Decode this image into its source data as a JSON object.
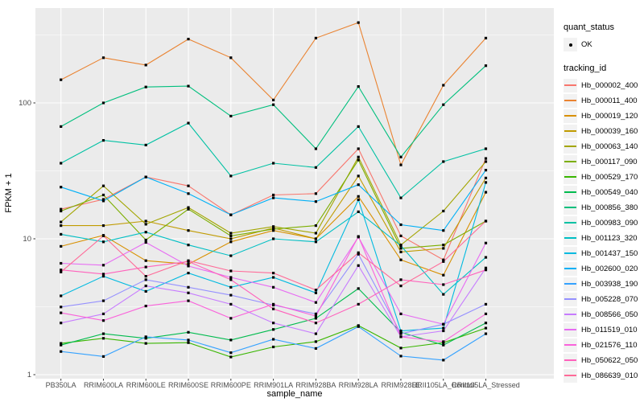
{
  "legend": {
    "quant_status_title": "quant_status",
    "quant_status_ok": "OK",
    "tracking_id_title": "tracking_id"
  },
  "figure": {
    "panel_bg": "#EBEBEB",
    "grid_color": "#FFFFFF",
    "tick_label_color": "#4D4D4D",
    "point_color": "#000000",
    "key_bg": "#F2F2F2"
  },
  "chart_data": {
    "type": "line",
    "title": "",
    "xlabel": "sample_name",
    "ylabel": "FPKM + 1",
    "y_scale": "log10",
    "ylim": [
      1,
      400
    ],
    "y_major_ticks": [
      1,
      10,
      100
    ],
    "y_major_tick_labels": [
      "1",
      "10",
      "100"
    ],
    "y_minor_ticks": [
      3.162,
      31.62,
      316.2
    ],
    "grid": "on",
    "legend_position": "right",
    "quant_status": "OK",
    "x": [
      "PB350LA",
      "RRIM600LA",
      "RRIM600LE",
      "RRIM600SE",
      "RRIM600PE",
      "RRIM901LA",
      "RRIM928BA",
      "RRIM928LA",
      "RRIM928LE",
      "RRII105LA_Control",
      "RRII105LA_Stressed"
    ],
    "series": [
      {
        "name": "Hb_000002_400",
        "color": "#F8766D",
        "values": [
          16.5,
          19.5,
          28.5,
          24.5,
          15,
          21,
          21.5,
          46,
          10.5,
          7,
          39
        ]
      },
      {
        "name": "Hb_000011_400",
        "color": "#EA8331",
        "values": [
          148,
          215,
          190,
          295,
          215,
          105,
          300,
          390,
          35,
          135,
          300
        ]
      },
      {
        "name": "Hb_000019_120",
        "color": "#D89000",
        "values": [
          8.8,
          10.6,
          6.9,
          6.5,
          9.5,
          11.5,
          10,
          20.5,
          7,
          5.4,
          22
        ]
      },
      {
        "name": "Hb_000039_160",
        "color": "#C09B00",
        "values": [
          12.5,
          12.5,
          13.5,
          11.5,
          10,
          12,
          10,
          29,
          8,
          8.5,
          28
        ]
      },
      {
        "name": "Hb_000063_140",
        "color": "#A3A500",
        "values": [
          13.3,
          24.5,
          12.8,
          17,
          11,
          12.3,
          11,
          40,
          9,
          16,
          37
        ]
      },
      {
        "name": "Hb_000117_090",
        "color": "#7CAE00",
        "values": [
          16,
          21,
          9.8,
          16.5,
          10.5,
          11.8,
          12.5,
          38,
          8.5,
          9,
          13.5
        ]
      },
      {
        "name": "Hb_000529_170",
        "color": "#39B600",
        "values": [
          1.7,
          1.85,
          1.7,
          1.72,
          1.35,
          1.6,
          1.75,
          2.3,
          1.57,
          1.72,
          2.2
        ]
      },
      {
        "name": "Hb_000549_040",
        "color": "#00BB4E",
        "values": [
          1.65,
          2.0,
          1.85,
          2.05,
          1.8,
          2.15,
          2.6,
          4.3,
          2.05,
          1.65,
          2.4
        ]
      },
      {
        "name": "Hb_000856_380",
        "color": "#00BF7D",
        "values": [
          67,
          100,
          131,
          133,
          80,
          97,
          46,
          132,
          40,
          97,
          188
        ]
      },
      {
        "name": "Hb_000983_090",
        "color": "#00C1A3",
        "values": [
          36,
          53,
          49,
          71,
          29,
          36,
          33.5,
          67,
          20,
          37,
          46
        ]
      },
      {
        "name": "Hb_001123_320",
        "color": "#00BFC4",
        "values": [
          10.8,
          9.5,
          11.2,
          9.0,
          7.5,
          10,
          9.5,
          15.8,
          8.9,
          3.9,
          7.3
        ]
      },
      {
        "name": "Hb_001437_150",
        "color": "#00BAE0",
        "values": [
          3.8,
          5.3,
          4.1,
          5.6,
          4.4,
          5.2,
          4.0,
          19.4,
          2.1,
          2.2,
          26
        ]
      },
      {
        "name": "Hb_002600_020",
        "color": "#00B0F6",
        "values": [
          24,
          19,
          28.5,
          21.5,
          15,
          20,
          18.8,
          25,
          12.7,
          11.5,
          32
        ]
      },
      {
        "name": "Hb_003938_190",
        "color": "#35A2FF",
        "values": [
          1.48,
          1.36,
          1.9,
          1.8,
          1.45,
          1.82,
          1.56,
          2.26,
          1.37,
          1.28,
          2.0
        ]
      },
      {
        "name": "Hb_005228_070",
        "color": "#9590FF",
        "values": [
          3.15,
          3.5,
          5.0,
          4.4,
          3.85,
          3.25,
          2.8,
          7.7,
          2.0,
          2.35,
          3.3
        ]
      },
      {
        "name": "Hb_008566_050",
        "color": "#C77CFF",
        "values": [
          2.4,
          2.8,
          4.5,
          4.0,
          3.3,
          2.4,
          2.0,
          6.35,
          1.9,
          2.1,
          6.1
        ]
      },
      {
        "name": "Hb_011519_010",
        "color": "#E76BF3",
        "values": [
          6.6,
          6.4,
          9.4,
          6.3,
          5.2,
          4.4,
          3.4,
          10.3,
          2.8,
          2.35,
          9.3
        ]
      },
      {
        "name": "Hb_021576_110",
        "color": "#FA62DB",
        "values": [
          2.85,
          2.5,
          3.2,
          3.5,
          2.6,
          3.3,
          2.7,
          10.4,
          1.9,
          1.75,
          2.8
        ]
      },
      {
        "name": "Hb_050622_050",
        "color": "#FF62BC",
        "values": [
          5.9,
          5.5,
          6.2,
          6.8,
          5.0,
          3.05,
          2.4,
          3.3,
          5.0,
          4.6,
          5.9
        ]
      },
      {
        "name": "Hb_086639_010",
        "color": "#FF6A98",
        "values": [
          5.7,
          10.5,
          5.3,
          6.9,
          5.8,
          5.6,
          4.2,
          7.9,
          4.5,
          6.8,
          13.5
        ]
      }
    ]
  }
}
